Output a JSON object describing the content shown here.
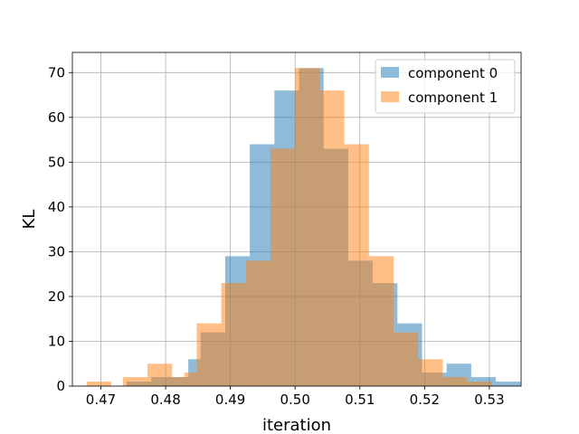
{
  "chart_data": {
    "type": "histogram",
    "xlabel": "iteration",
    "ylabel": "KL",
    "xlim": [
      0.4656,
      0.5349
    ],
    "ylim": [
      0,
      74.5
    ],
    "xticks": [
      0.47,
      0.48,
      0.49,
      0.5,
      0.51,
      0.52,
      0.53
    ],
    "yticks": [
      0,
      10,
      20,
      30,
      40,
      50,
      60,
      70
    ],
    "grid": true,
    "legend_position": "top-right",
    "series": [
      {
        "name": "component 0",
        "color": "#1f77b4",
        "alpha": 0.5,
        "bins": [
          {
            "x0": 0.474,
            "x1": 0.4778,
            "count": 1
          },
          {
            "x0": 0.4778,
            "x1": 0.4816,
            "count": 2
          },
          {
            "x0": 0.4816,
            "x1": 0.4835,
            "count": 2
          },
          {
            "x0": 0.4835,
            "x1": 0.4854,
            "count": 6
          },
          {
            "x0": 0.4854,
            "x1": 0.4892,
            "count": 12
          },
          {
            "x0": 0.4892,
            "x1": 0.493,
            "count": 29
          },
          {
            "x0": 0.493,
            "x1": 0.4968,
            "count": 54
          },
          {
            "x0": 0.4968,
            "x1": 0.5006,
            "count": 66
          },
          {
            "x0": 0.5006,
            "x1": 0.5044,
            "count": 71
          },
          {
            "x0": 0.5044,
            "x1": 0.5082,
            "count": 53
          },
          {
            "x0": 0.5082,
            "x1": 0.512,
            "count": 28
          },
          {
            "x0": 0.512,
            "x1": 0.5158,
            "count": 23
          },
          {
            "x0": 0.5158,
            "x1": 0.5196,
            "count": 14
          },
          {
            "x0": 0.5196,
            "x1": 0.5234,
            "count": 3
          },
          {
            "x0": 0.5234,
            "x1": 0.5272,
            "count": 5
          },
          {
            "x0": 0.5272,
            "x1": 0.531,
            "count": 2
          },
          {
            "x0": 0.531,
            "x1": 0.5348,
            "count": 1
          }
        ]
      },
      {
        "name": "component 1",
        "color": "#ff7f0e",
        "alpha": 0.5,
        "bins": [
          {
            "x0": 0.4678,
            "x1": 0.4716,
            "count": 1
          },
          {
            "x0": 0.4734,
            "x1": 0.4772,
            "count": 2
          },
          {
            "x0": 0.4772,
            "x1": 0.481,
            "count": 5
          },
          {
            "x0": 0.481,
            "x1": 0.4829,
            "count": 2
          },
          {
            "x0": 0.4829,
            "x1": 0.4848,
            "count": 3
          },
          {
            "x0": 0.4848,
            "x1": 0.4886,
            "count": 14
          },
          {
            "x0": 0.4886,
            "x1": 0.4924,
            "count": 23
          },
          {
            "x0": 0.4924,
            "x1": 0.4962,
            "count": 28
          },
          {
            "x0": 0.4962,
            "x1": 0.5,
            "count": 53
          },
          {
            "x0": 0.5,
            "x1": 0.5038,
            "count": 71
          },
          {
            "x0": 0.5038,
            "x1": 0.5076,
            "count": 66
          },
          {
            "x0": 0.5076,
            "x1": 0.5114,
            "count": 54
          },
          {
            "x0": 0.5114,
            "x1": 0.5152,
            "count": 29
          },
          {
            "x0": 0.5152,
            "x1": 0.519,
            "count": 12
          },
          {
            "x0": 0.519,
            "x1": 0.5228,
            "count": 6
          },
          {
            "x0": 0.5228,
            "x1": 0.5266,
            "count": 2
          },
          {
            "x0": 0.5266,
            "x1": 0.5304,
            "count": 1
          }
        ]
      }
    ]
  }
}
